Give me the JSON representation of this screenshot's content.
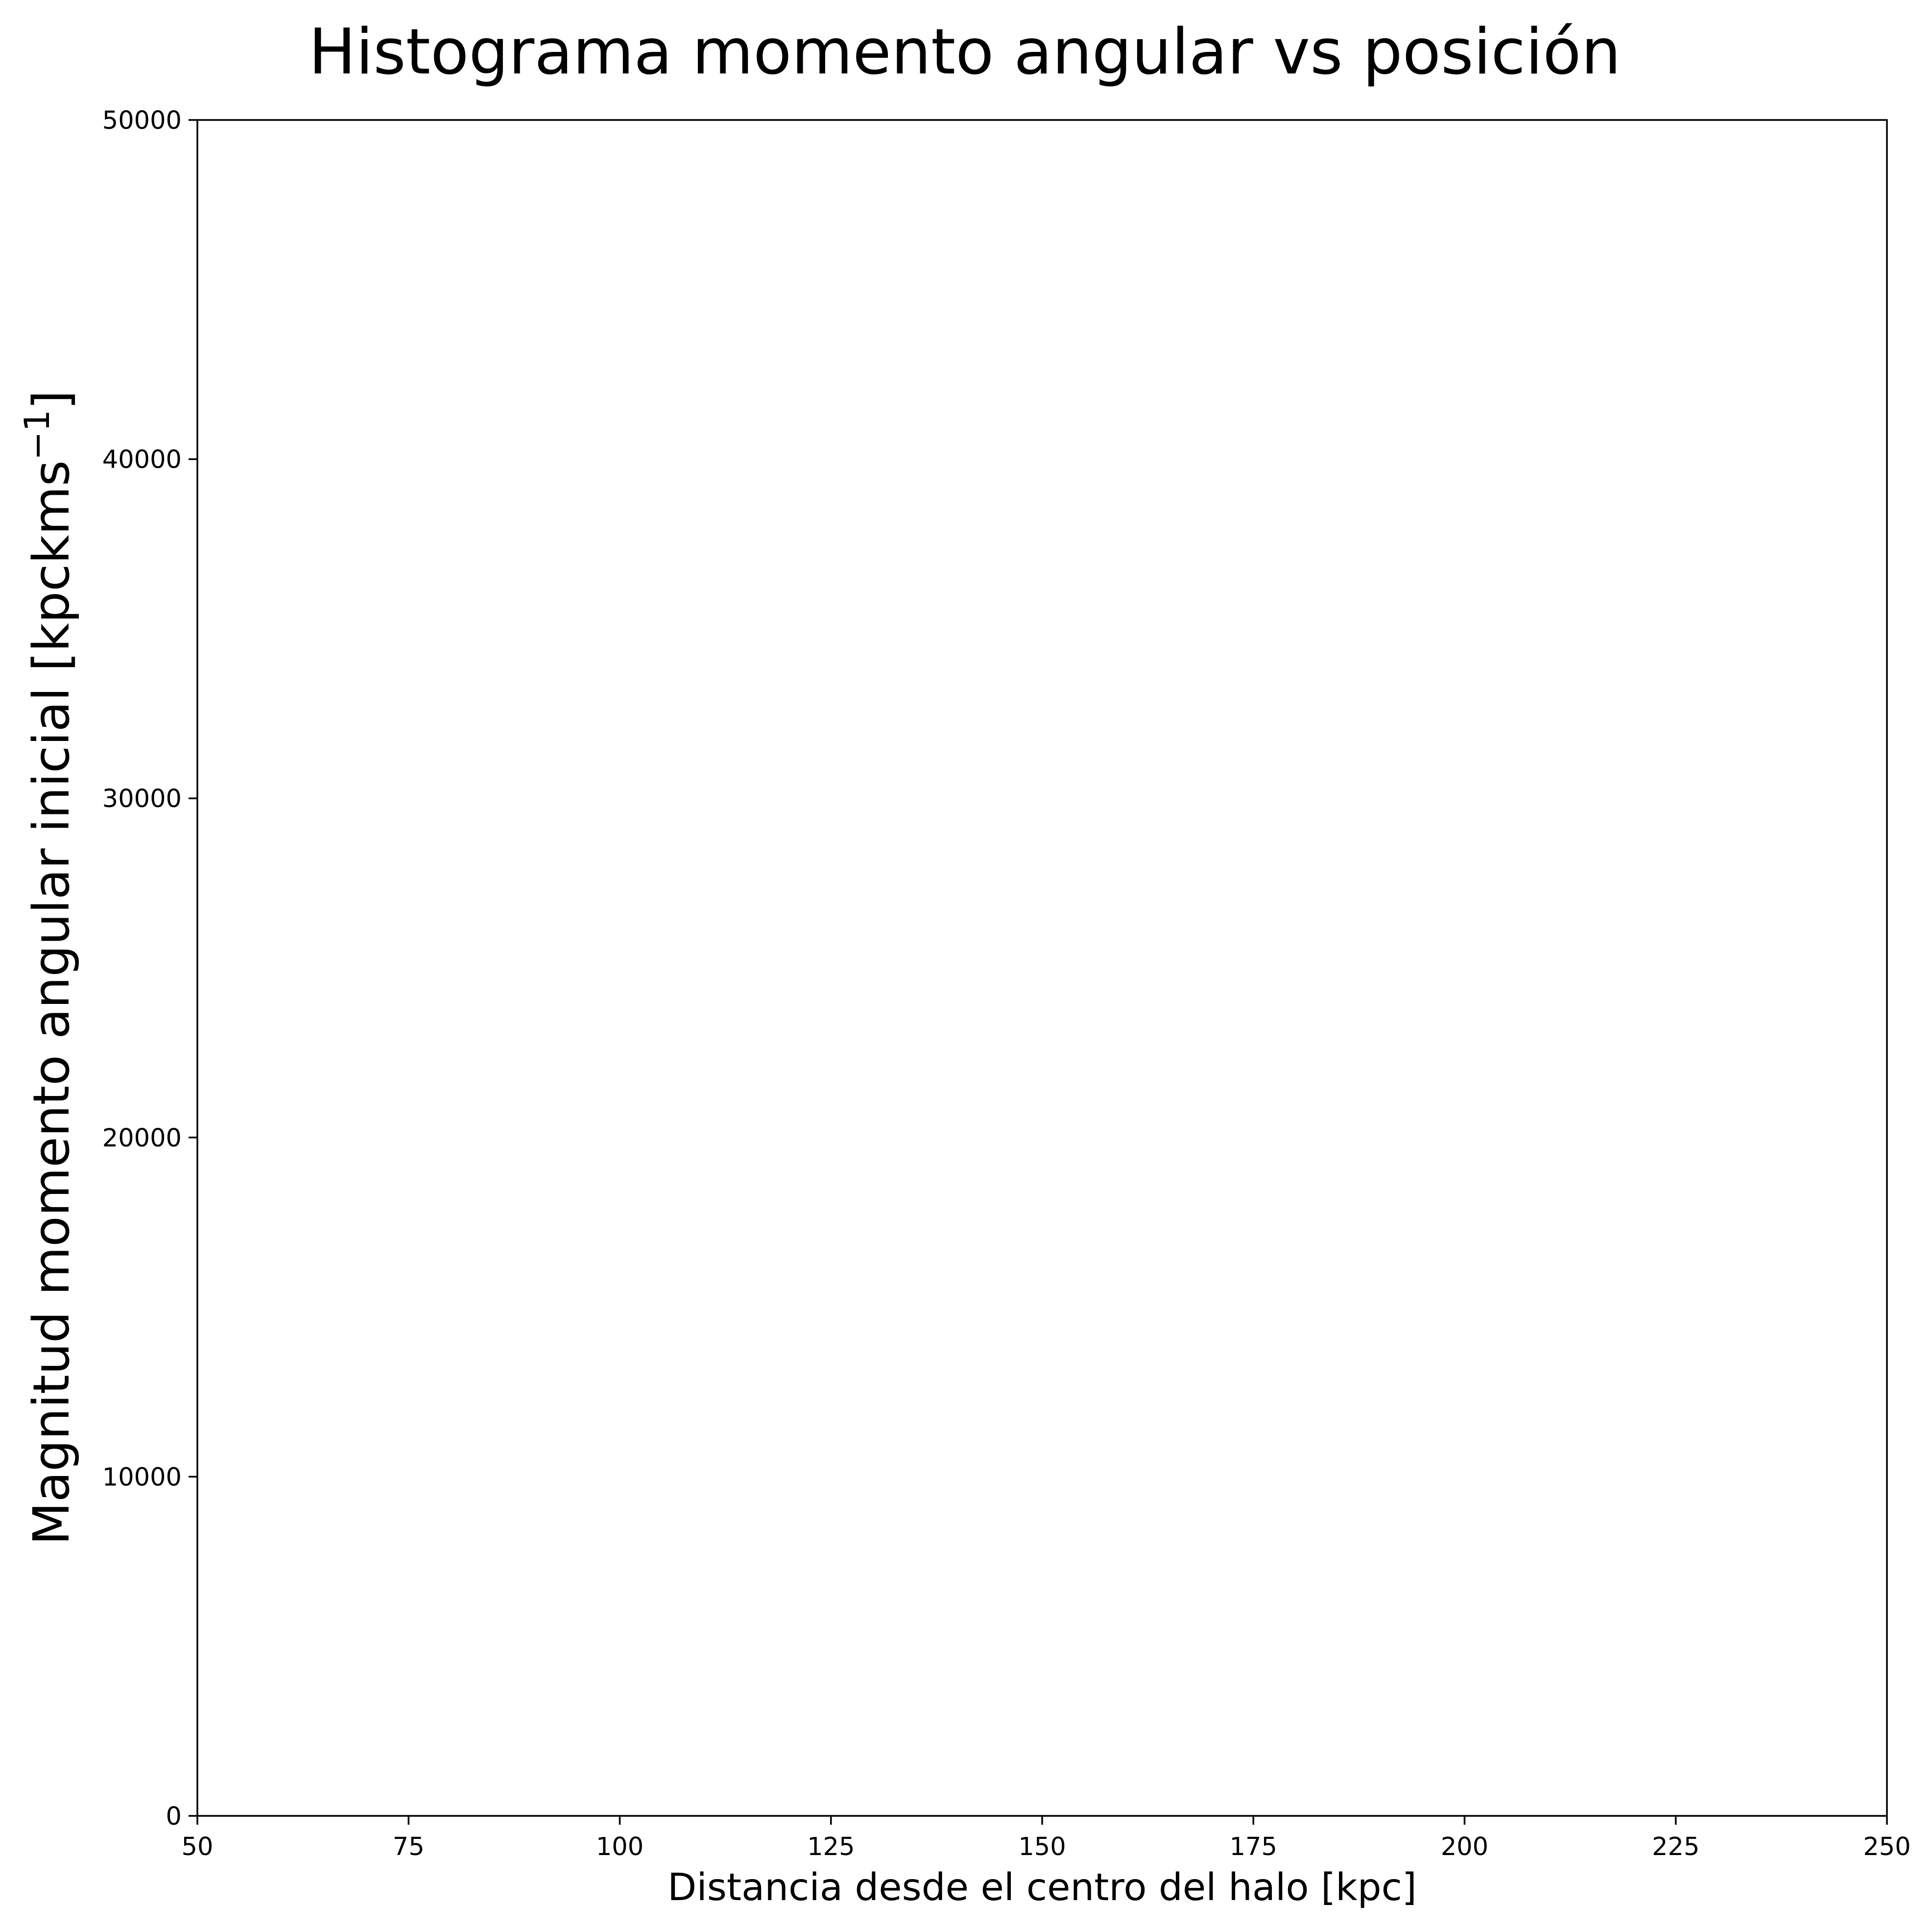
{
  "chart_data": {
    "type": "heatmap",
    "title": "Histograma momento angular vs posición",
    "xlabel": "Distancia desde el centro del halo [kpc]",
    "ylabel": {
      "main": "Magnitud momento angular inicial [kpckms",
      "superscript": "−1",
      "close": "]"
    },
    "xlim": [
      50,
      250
    ],
    "ylim": [
      0,
      50000
    ],
    "x_ticks": [
      50,
      75,
      100,
      125,
      150,
      175,
      200,
      225,
      250
    ],
    "y_ticks": [
      0,
      10000,
      20000,
      30000,
      40000,
      50000
    ],
    "x_tick_labels": [
      "50",
      "75",
      "100",
      "125",
      "150",
      "175",
      "200",
      "225",
      "250"
    ],
    "y_tick_labels": [
      "0",
      "10000",
      "20000",
      "30000",
      "40000",
      "50000"
    ],
    "bins": [],
    "grid": false,
    "colors": {
      "background": "#ffffff",
      "axes": "#000000",
      "text": "#000000"
    }
  }
}
